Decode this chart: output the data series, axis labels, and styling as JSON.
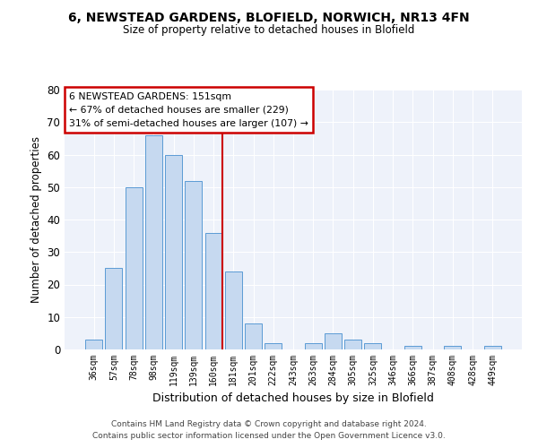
{
  "title1": "6, NEWSTEAD GARDENS, BLOFIELD, NORWICH, NR13 4FN",
  "title2": "Size of property relative to detached houses in Blofield",
  "xlabel": "Distribution of detached houses by size in Blofield",
  "ylabel": "Number of detached properties",
  "categories": [
    "36sqm",
    "57sqm",
    "78sqm",
    "98sqm",
    "119sqm",
    "139sqm",
    "160sqm",
    "181sqm",
    "201sqm",
    "222sqm",
    "243sqm",
    "263sqm",
    "284sqm",
    "305sqm",
    "325sqm",
    "346sqm",
    "366sqm",
    "387sqm",
    "408sqm",
    "428sqm",
    "449sqm"
  ],
  "values": [
    3,
    25,
    50,
    66,
    60,
    52,
    36,
    24,
    8,
    2,
    0,
    2,
    5,
    3,
    2,
    0,
    1,
    0,
    1,
    0,
    1
  ],
  "bar_color": "#c6d9f0",
  "bar_edge_color": "#5b9bd5",
  "ylim": [
    0,
    80
  ],
  "yticks": [
    0,
    10,
    20,
    30,
    40,
    50,
    60,
    70,
    80
  ],
  "annotation_text": "6 NEWSTEAD GARDENS: 151sqm\n← 67% of detached houses are smaller (229)\n31% of semi-detached houses are larger (107) →",
  "annotation_box_color": "#ffffff",
  "annotation_box_edge": "#cc0000",
  "vline_color": "#cc0000",
  "footer1": "Contains HM Land Registry data © Crown copyright and database right 2024.",
  "footer2": "Contains public sector information licensed under the Open Government Licence v3.0.",
  "bg_color": "#eef2fa"
}
